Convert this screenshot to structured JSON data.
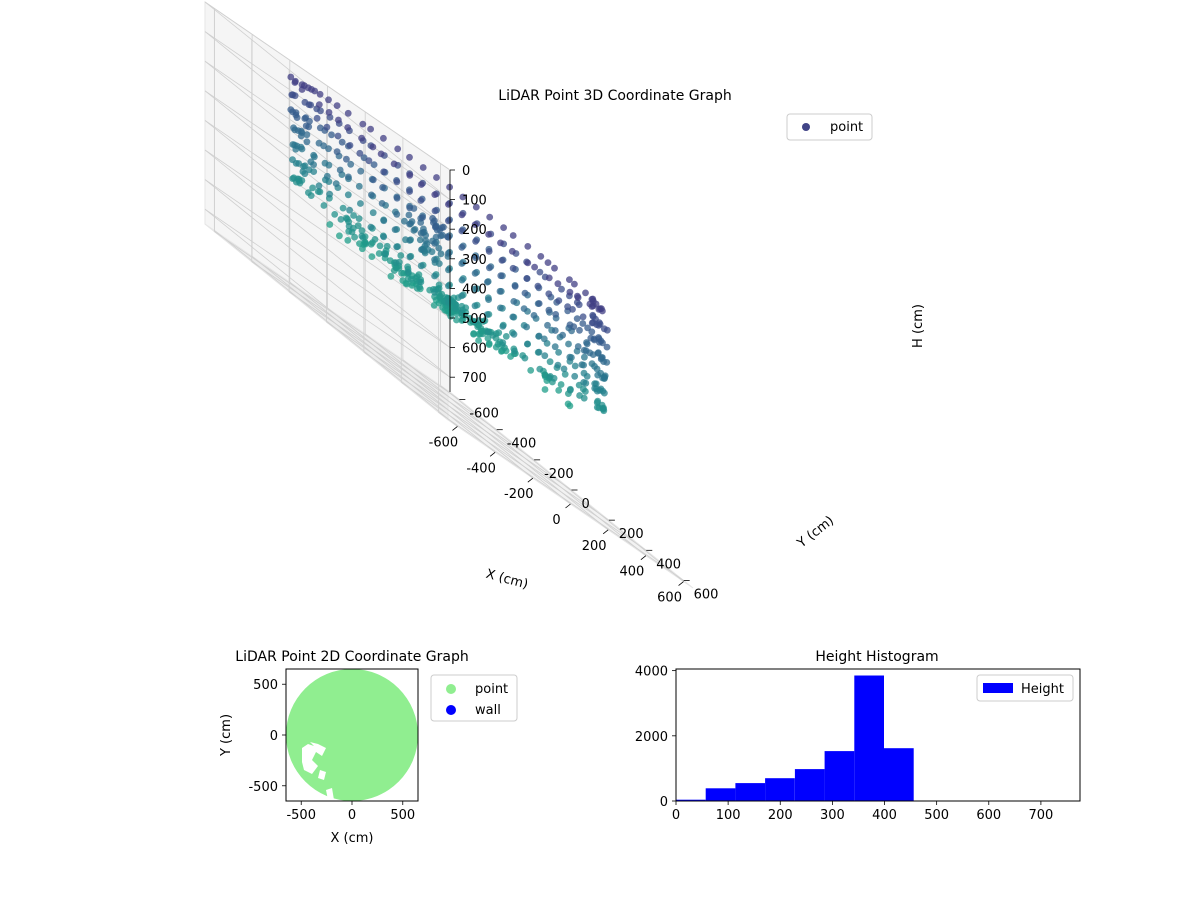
{
  "chart_data": [
    {
      "type": "scatter3d",
      "title": "LiDAR Point 3D Coordinate Graph",
      "xlabel": "X (cm)",
      "ylabel": "Y (cm)",
      "zlabel": "H (cm)",
      "xlim": [
        -650,
        650
      ],
      "ylim": [
        -650,
        650
      ],
      "zlim": [
        0,
        750
      ],
      "z_inverted": true,
      "grid": true,
      "legend": "top-right",
      "xticks": [
        "-600",
        "-400",
        "-200",
        "0",
        "200",
        "400",
        "600"
      ],
      "yticks": [
        "-600",
        "-400",
        "-200",
        "0",
        "200",
        "400",
        "600"
      ],
      "zticks": [
        "0",
        "100",
        "200",
        "300",
        "400",
        "500",
        "600",
        "700"
      ],
      "series": [
        {
          "name": "point",
          "color": "#414487",
          "colormap": "viridis"
        }
      ]
    },
    {
      "type": "scatter",
      "title": "LiDAR Point 2D Coordinate Graph",
      "xlabel": "X (cm)",
      "ylabel": "Y (cm)",
      "xlim": [
        -650,
        650
      ],
      "ylim": [
        -650,
        650
      ],
      "xticks": [
        "-500",
        "0",
        "500"
      ],
      "yticks": [
        "500",
        "0",
        "-500"
      ],
      "legend": "outside-right",
      "series": [
        {
          "name": "point",
          "color": "#90ee90",
          "shape": "filled disc of radius 650 cm with gaps near x -450..-250, y -200..-650"
        },
        {
          "name": "wall",
          "color": "#0000ff"
        }
      ]
    },
    {
      "type": "bar",
      "subtype": "histogram",
      "title": "Height Histogram",
      "xlim": [
        0,
        775
      ],
      "ylim": [
        0,
        4050
      ],
      "xticks": [
        "0",
        "100",
        "200",
        "300",
        "400",
        "500",
        "600",
        "700"
      ],
      "yticks": [
        "0",
        "2000",
        "4000"
      ],
      "legend": "top-right",
      "bin_width": 57,
      "bin_edges": [
        0,
        57,
        114,
        171,
        228,
        285,
        342,
        399,
        456,
        513,
        570,
        627,
        684,
        741
      ],
      "series": [
        {
          "name": "Height",
          "color": "#0000ff",
          "values": [
            40,
            390,
            550,
            700,
            980,
            1530,
            3850,
            1620,
            0,
            0,
            0,
            0,
            0
          ]
        }
      ]
    }
  ]
}
